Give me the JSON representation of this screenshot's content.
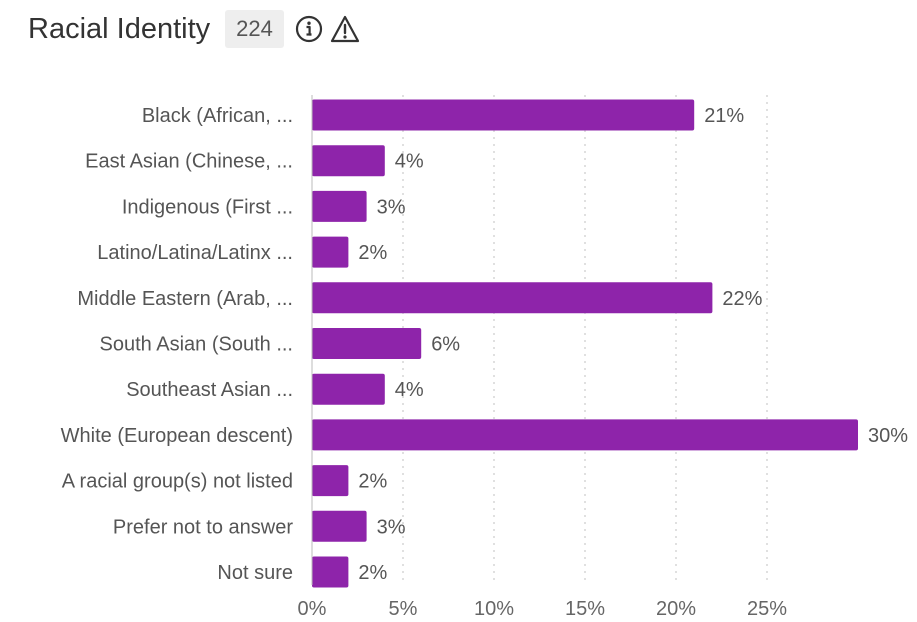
{
  "header": {
    "title": "Racial Identity",
    "count": "224",
    "info_icon": "info-icon",
    "warning_icon": "warning-icon"
  },
  "colors": {
    "bar": "#8e24aa",
    "grid": "#cccccc",
    "text": "#555555"
  },
  "chart_data": {
    "type": "bar",
    "orientation": "horizontal",
    "categories": [
      "Black (African, ...",
      "East Asian (Chinese, ...",
      "Indigenous (First ...",
      "Latino/Latina/Latinx ...",
      "Middle Eastern (Arab, ...",
      "South Asian (South ...",
      "Southeast Asian ...",
      "White (European descent)",
      "A racial group(s) not listed",
      "Prefer not to answer",
      "Not sure"
    ],
    "values": [
      21,
      4,
      3,
      2,
      22,
      6,
      4,
      30,
      2,
      3,
      2
    ],
    "value_labels": [
      "21%",
      "4%",
      "3%",
      "2%",
      "22%",
      "6%",
      "4%",
      "30%",
      "2%",
      "3%",
      "2%"
    ],
    "xticks": [
      0,
      5,
      10,
      15,
      20,
      25
    ],
    "xtick_labels": [
      "0%",
      "5%",
      "10%",
      "15%",
      "20%",
      "25%"
    ],
    "xlim": [
      0,
      30
    ],
    "grid": true,
    "grid_style": "dotted-vertical"
  }
}
